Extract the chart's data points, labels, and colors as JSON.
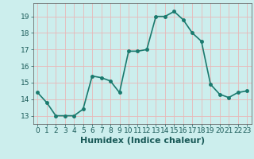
{
  "x": [
    0,
    1,
    2,
    3,
    4,
    5,
    6,
    7,
    8,
    9,
    10,
    11,
    12,
    13,
    14,
    15,
    16,
    17,
    18,
    19,
    20,
    21,
    22,
    23
  ],
  "y": [
    14.4,
    13.8,
    13.0,
    13.0,
    13.0,
    13.4,
    15.4,
    15.3,
    15.1,
    14.4,
    16.9,
    16.9,
    17.0,
    19.0,
    19.0,
    19.3,
    18.8,
    18.0,
    17.5,
    14.9,
    14.3,
    14.1,
    14.4,
    14.5
  ],
  "line_color": "#1a7a6e",
  "marker": "o",
  "marker_size": 2.5,
  "bg_color": "#cceeed",
  "grid_color": "#e8b8b8",
  "xlabel": "Humidex (Indice chaleur)",
  "ylim": [
    12.5,
    19.8
  ],
  "xlim": [
    -0.5,
    23.5
  ],
  "yticks": [
    13,
    14,
    15,
    16,
    17,
    18,
    19
  ],
  "xticks": [
    0,
    1,
    2,
    3,
    4,
    5,
    6,
    7,
    8,
    9,
    10,
    11,
    12,
    13,
    14,
    15,
    16,
    17,
    18,
    19,
    20,
    21,
    22,
    23
  ],
  "tick_fontsize": 6.5,
  "xlabel_fontsize": 8,
  "line_width": 1.2
}
